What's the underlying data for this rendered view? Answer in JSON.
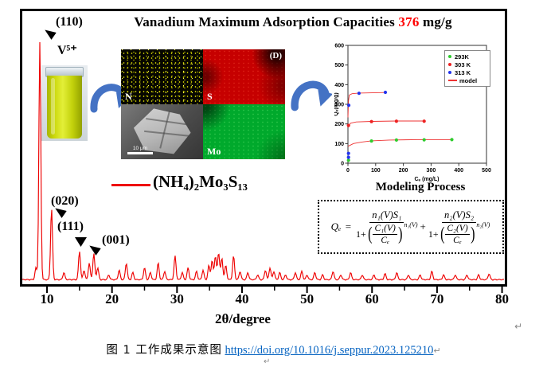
{
  "figure": {
    "title": {
      "text": "Vanadium Maximum Adsorption Capacities",
      "value": "376",
      "unit": "mg/g",
      "value_color": "#ff0000"
    },
    "labels": {
      "peak110": "(110)",
      "peak020": "(020)",
      "peak111": "(111)",
      "peak001": "(001)",
      "vial": "V⁵⁺",
      "sample_formula": "(NH₄)₂Mo₃S₁₃"
    },
    "eds": {
      "n_label": "N",
      "s_label": "S",
      "mo_label": "Mo",
      "panel_label": "(D)",
      "scale_bar": "10 μm",
      "colors": {
        "n": "#d8d800",
        "s": "#c60000",
        "mo": "#00a92c"
      }
    },
    "modeling_title": "Modeling Process",
    "equation": {
      "lhs": "Qₑ",
      "eq": "=",
      "plus": "+",
      "terms": [
        {
          "num": "n₁(V)S₁",
          "den_prefix": "1+",
          "inner_num": "C₁(V)",
          "inner_den": "Cₑ",
          "exp": "n₁(V)"
        },
        {
          "num": "n₂(V)S₂",
          "den_prefix": "1+",
          "inner_num": "C₂(V)",
          "inner_den": "Cₑ",
          "exp": "n₂(V)"
        }
      ]
    }
  },
  "chart_data": [
    {
      "type": "line",
      "name": "xrd-pattern",
      "xlabel": "2θ/degree",
      "xticks": [
        10,
        20,
        30,
        40,
        50,
        60,
        70,
        80
      ],
      "xlim": [
        6.2,
        80.3
      ],
      "line_color": "#ee0000",
      "labeled_peaks": [
        {
          "label": "(110)",
          "two_theta": 8.9
        },
        {
          "label": "(020)",
          "two_theta": 10.7
        },
        {
          "label": "(111)",
          "two_theta": 15.0
        },
        {
          "label": "(001)",
          "two_theta": 17.2
        }
      ],
      "peaks": [
        [
          8.3,
          5
        ],
        [
          8.9,
          100
        ],
        [
          10.7,
          30
        ],
        [
          12.6,
          3
        ],
        [
          15.0,
          12
        ],
        [
          15.7,
          4
        ],
        [
          16.5,
          7
        ],
        [
          17.2,
          11
        ],
        [
          17.8,
          5
        ],
        [
          19.5,
          2
        ],
        [
          21.1,
          4
        ],
        [
          22.2,
          7
        ],
        [
          23.2,
          3
        ],
        [
          25.0,
          5
        ],
        [
          25.9,
          3
        ],
        [
          27.1,
          7
        ],
        [
          28.1,
          3.5
        ],
        [
          29.7,
          10
        ],
        [
          30.8,
          3
        ],
        [
          31.7,
          5
        ],
        [
          33.0,
          3.5
        ],
        [
          34.0,
          4
        ],
        [
          34.9,
          6
        ],
        [
          35.4,
          8
        ],
        [
          35.9,
          10
        ],
        [
          36.4,
          11.5
        ],
        [
          36.9,
          9
        ],
        [
          37.5,
          6
        ],
        [
          38.7,
          10
        ],
        [
          39.7,
          3.5
        ],
        [
          40.9,
          3
        ],
        [
          42.4,
          2
        ],
        [
          43.6,
          4
        ],
        [
          44.3,
          5
        ],
        [
          44.9,
          3.5
        ],
        [
          45.8,
          3
        ],
        [
          46.7,
          2
        ],
        [
          48.2,
          3
        ],
        [
          49.2,
          3.5
        ],
        [
          50.0,
          2
        ],
        [
          51.2,
          3
        ],
        [
          52.4,
          2
        ],
        [
          54.0,
          3.5
        ],
        [
          55.2,
          2
        ],
        [
          56.7,
          3
        ],
        [
          58.5,
          2
        ],
        [
          60.3,
          2
        ],
        [
          62.0,
          2.5
        ],
        [
          63.8,
          3
        ],
        [
          65.6,
          2
        ],
        [
          67.4,
          2
        ],
        [
          69.2,
          3.5
        ],
        [
          71.0,
          2
        ],
        [
          72.8,
          2
        ],
        [
          74.6,
          2
        ],
        [
          76.4,
          2
        ],
        [
          78.0,
          2.5
        ]
      ]
    },
    {
      "type": "scatter",
      "name": "adsorption-isotherms",
      "xlabel": "Cₑ (mg/L)",
      "ylabel": "Qₑ(mg/g)",
      "xlim": [
        0,
        500
      ],
      "ylim": [
        0,
        600
      ],
      "xticks": [
        0,
        100,
        200,
        300,
        400,
        500
      ],
      "yticks": [
        0,
        100,
        200,
        300,
        400,
        500,
        600
      ],
      "legend_position": "top-right",
      "series": [
        {
          "name": "293K",
          "color": "#2ecc2e",
          "points": [
            [
              2,
              15
            ],
            [
              85,
              113
            ],
            [
              175,
              118
            ],
            [
              275,
              119
            ],
            [
              375,
              120
            ]
          ]
        },
        {
          "name": "303 K",
          "color": "#ee2222",
          "points": [
            [
              2,
              192
            ],
            [
              85,
              212
            ],
            [
              175,
              214
            ],
            [
              275,
              214
            ]
          ]
        },
        {
          "name": "313 K",
          "color": "#2233ee",
          "points": [
            [
              2,
              30
            ],
            [
              2,
              50
            ],
            [
              3,
              295
            ],
            [
              40,
              356
            ],
            [
              135,
              361
            ]
          ]
        },
        {
          "name": "model",
          "color": "#ee3333",
          "curves": [
            [
              [
                0,
                86
              ],
              [
                20,
                100
              ],
              [
                50,
                108
              ],
              [
                85,
                114
              ],
              [
                150,
                118
              ],
              [
                250,
                120
              ],
              [
                375,
                120
              ]
            ],
            [
              [
                0,
                188
              ],
              [
                10,
                204
              ],
              [
                30,
                210
              ],
              [
                85,
                213
              ],
              [
                175,
                215
              ],
              [
                275,
                215
              ]
            ],
            [
              [
                0,
                233
              ],
              [
                2,
                318
              ],
              [
                5,
                347
              ],
              [
                15,
                354
              ],
              [
                40,
                357
              ],
              [
                135,
                360
              ]
            ]
          ]
        }
      ]
    }
  ],
  "caption": {
    "figure_label": "图 1 工作成果示意图",
    "link": "https://doi.org/10.1016/j.seppur.2023.125210",
    "return_mark": "↵"
  }
}
